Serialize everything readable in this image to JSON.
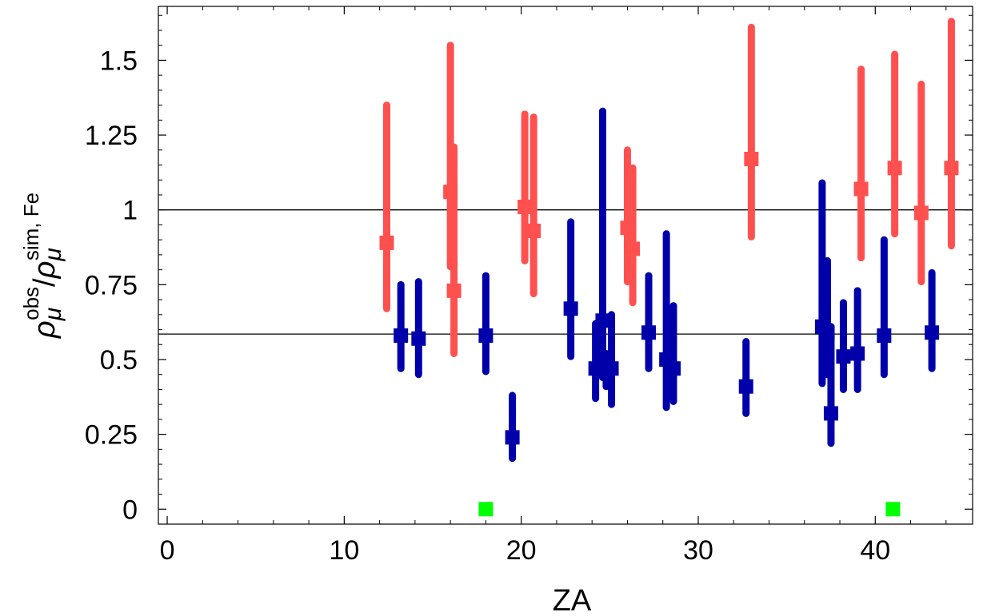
{
  "chart_data": {
    "type": "scatter",
    "xlabel": "ZA",
    "ylabel": {
      "rho": "ρ",
      "mu": "μ",
      "sup_num": "obs",
      "slash": "/",
      "sup_den": "sim, Fe"
    },
    "xlim": [
      -0.5,
      45.5
    ],
    "ylim": [
      -0.05,
      1.68
    ],
    "x_ticks": [
      {
        "value": 0,
        "label": "0"
      },
      {
        "value": 10,
        "label": "10"
      },
      {
        "value": 20,
        "label": "20"
      },
      {
        "value": 30,
        "label": "30"
      },
      {
        "value": 40,
        "label": "40"
      }
    ],
    "y_ticks": [
      {
        "value": 0,
        "label": "0"
      },
      {
        "value": 0.25,
        "label": "0.25"
      },
      {
        "value": 0.5,
        "label": "0.5"
      },
      {
        "value": 0.75,
        "label": "0.75"
      },
      {
        "value": 1,
        "label": "1"
      },
      {
        "value": 1.25,
        "label": "1.25"
      },
      {
        "value": 1.5,
        "label": "1.5"
      }
    ],
    "reference_lines": [
      1.0,
      0.585
    ],
    "colors": {
      "red": "#ff5050",
      "blue": "#0000aa",
      "green": "#00ff00"
    },
    "series": [
      {
        "color": "red",
        "points": [
          {
            "x": 12.4,
            "y": 0.89,
            "lo": 0.67,
            "hi": 1.35
          },
          {
            "x": 16.0,
            "y": 1.06,
            "lo": 0.81,
            "hi": 1.55
          },
          {
            "x": 16.2,
            "y": 0.73,
            "lo": 0.52,
            "hi": 1.21
          },
          {
            "x": 20.2,
            "y": 1.01,
            "lo": 0.83,
            "hi": 1.32
          },
          {
            "x": 20.7,
            "y": 0.93,
            "lo": 0.72,
            "hi": 1.31
          },
          {
            "x": 26.0,
            "y": 0.94,
            "lo": 0.76,
            "hi": 1.2
          },
          {
            "x": 26.3,
            "y": 0.87,
            "lo": 0.69,
            "hi": 1.14
          },
          {
            "x": 33.0,
            "y": 1.17,
            "lo": 0.91,
            "hi": 1.61
          },
          {
            "x": 39.2,
            "y": 1.07,
            "lo": 0.84,
            "hi": 1.47
          },
          {
            "x": 41.1,
            "y": 1.14,
            "lo": 0.92,
            "hi": 1.52
          },
          {
            "x": 42.6,
            "y": 0.99,
            "lo": 0.76,
            "hi": 1.42
          },
          {
            "x": 44.3,
            "y": 1.14,
            "lo": 0.88,
            "hi": 1.63
          }
        ]
      },
      {
        "color": "blue",
        "points": [
          {
            "x": 13.2,
            "y": 0.58,
            "lo": 0.47,
            "hi": 0.75
          },
          {
            "x": 14.2,
            "y": 0.57,
            "lo": 0.45,
            "hi": 0.76
          },
          {
            "x": 18.0,
            "y": 0.58,
            "lo": 0.46,
            "hi": 0.78
          },
          {
            "x": 19.5,
            "y": 0.24,
            "lo": 0.17,
            "hi": 0.38
          },
          {
            "x": 22.8,
            "y": 0.67,
            "lo": 0.51,
            "hi": 0.96
          },
          {
            "x": 24.2,
            "y": 0.47,
            "lo": 0.37,
            "hi": 0.62
          },
          {
            "x": 24.6,
            "y": 0.63,
            "lo": 0.44,
            "hi": 1.33
          },
          {
            "x": 24.8,
            "y": 0.47,
            "lo": 0.41,
            "hi": 0.52
          },
          {
            "x": 25.1,
            "y": 0.47,
            "lo": 0.35,
            "hi": 0.65
          },
          {
            "x": 27.2,
            "y": 0.59,
            "lo": 0.47,
            "hi": 0.78
          },
          {
            "x": 28.2,
            "y": 0.5,
            "lo": 0.34,
            "hi": 0.92
          },
          {
            "x": 28.6,
            "y": 0.47,
            "lo": 0.36,
            "hi": 0.68
          },
          {
            "x": 32.7,
            "y": 0.41,
            "lo": 0.32,
            "hi": 0.56
          },
          {
            "x": 37.0,
            "y": 0.61,
            "lo": 0.42,
            "hi": 1.09
          },
          {
            "x": 37.3,
            "y": 0.59,
            "lo": 0.45,
            "hi": 0.83
          },
          {
            "x": 37.5,
            "y": 0.32,
            "lo": 0.22,
            "hi": 0.61
          },
          {
            "x": 38.2,
            "y": 0.51,
            "lo": 0.4,
            "hi": 0.69
          },
          {
            "x": 39.0,
            "y": 0.52,
            "lo": 0.4,
            "hi": 0.73
          },
          {
            "x": 40.5,
            "y": 0.58,
            "lo": 0.45,
            "hi": 0.9
          },
          {
            "x": 43.2,
            "y": 0.59,
            "lo": 0.47,
            "hi": 0.79
          }
        ]
      },
      {
        "color": "green",
        "points": [
          {
            "x": 18.0,
            "y": 0.0
          },
          {
            "x": 41.0,
            "y": 0.0
          }
        ]
      }
    ]
  }
}
